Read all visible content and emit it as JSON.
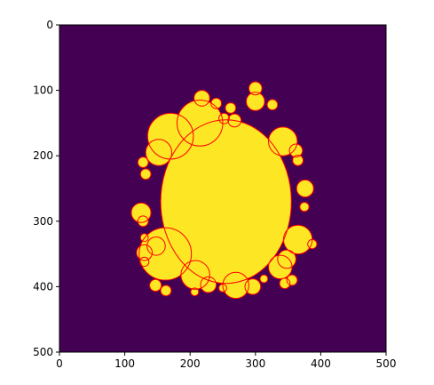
{
  "chart_data": {
    "type": "heatmap",
    "title": "",
    "xlabel": "",
    "ylabel": "",
    "xlim": [
      0,
      500
    ],
    "ylim": [
      500,
      0
    ],
    "x_ticks": [
      "0",
      "100",
      "200",
      "300",
      "400",
      "500"
    ],
    "y_ticks": [
      "0",
      "100",
      "200",
      "300",
      "400",
      "500"
    ],
    "grid": false,
    "colormap": [
      "#440154",
      "#fde725"
    ],
    "overlay_color": "#ff0000",
    "main_blob": {
      "cx": 255,
      "cy": 270,
      "rx": 100,
      "ry": 125
    },
    "circles": [
      {
        "x": 300,
        "y": 97,
        "r": 10
      },
      {
        "x": 300,
        "y": 117,
        "r": 14
      },
      {
        "x": 218,
        "y": 112,
        "r": 12
      },
      {
        "x": 240,
        "y": 120,
        "r": 8
      },
      {
        "x": 262,
        "y": 127,
        "r": 8
      },
      {
        "x": 326,
        "y": 122,
        "r": 8
      },
      {
        "x": 215,
        "y": 150,
        "r": 35
      },
      {
        "x": 170,
        "y": 170,
        "r": 35
      },
      {
        "x": 252,
        "y": 143,
        "r": 8
      },
      {
        "x": 268,
        "y": 146,
        "r": 10
      },
      {
        "x": 342,
        "y": 178,
        "r": 22
      },
      {
        "x": 362,
        "y": 192,
        "r": 10
      },
      {
        "x": 365,
        "y": 207,
        "r": 8
      },
      {
        "x": 152,
        "y": 195,
        "r": 20
      },
      {
        "x": 128,
        "y": 210,
        "r": 8
      },
      {
        "x": 132,
        "y": 228,
        "r": 8
      },
      {
        "x": 376,
        "y": 250,
        "r": 13
      },
      {
        "x": 375,
        "y": 278,
        "r": 7
      },
      {
        "x": 125,
        "y": 287,
        "r": 15
      },
      {
        "x": 128,
        "y": 300,
        "r": 8
      },
      {
        "x": 365,
        "y": 328,
        "r": 22
      },
      {
        "x": 387,
        "y": 335,
        "r": 7
      },
      {
        "x": 162,
        "y": 350,
        "r": 40
      },
      {
        "x": 148,
        "y": 338,
        "r": 14
      },
      {
        "x": 130,
        "y": 325,
        "r": 6
      },
      {
        "x": 130,
        "y": 348,
        "r": 12
      },
      {
        "x": 130,
        "y": 362,
        "r": 7
      },
      {
        "x": 348,
        "y": 358,
        "r": 14
      },
      {
        "x": 338,
        "y": 370,
        "r": 18
      },
      {
        "x": 356,
        "y": 390,
        "r": 8
      },
      {
        "x": 345,
        "y": 395,
        "r": 8
      },
      {
        "x": 208,
        "y": 382,
        "r": 22
      },
      {
        "x": 228,
        "y": 397,
        "r": 12
      },
      {
        "x": 270,
        "y": 398,
        "r": 20
      },
      {
        "x": 296,
        "y": 400,
        "r": 12
      },
      {
        "x": 147,
        "y": 398,
        "r": 9
      },
      {
        "x": 163,
        "y": 406,
        "r": 8
      },
      {
        "x": 207,
        "y": 408,
        "r": 6
      },
      {
        "x": 250,
        "y": 402,
        "r": 6
      },
      {
        "x": 313,
        "y": 388,
        "r": 6
      }
    ]
  }
}
